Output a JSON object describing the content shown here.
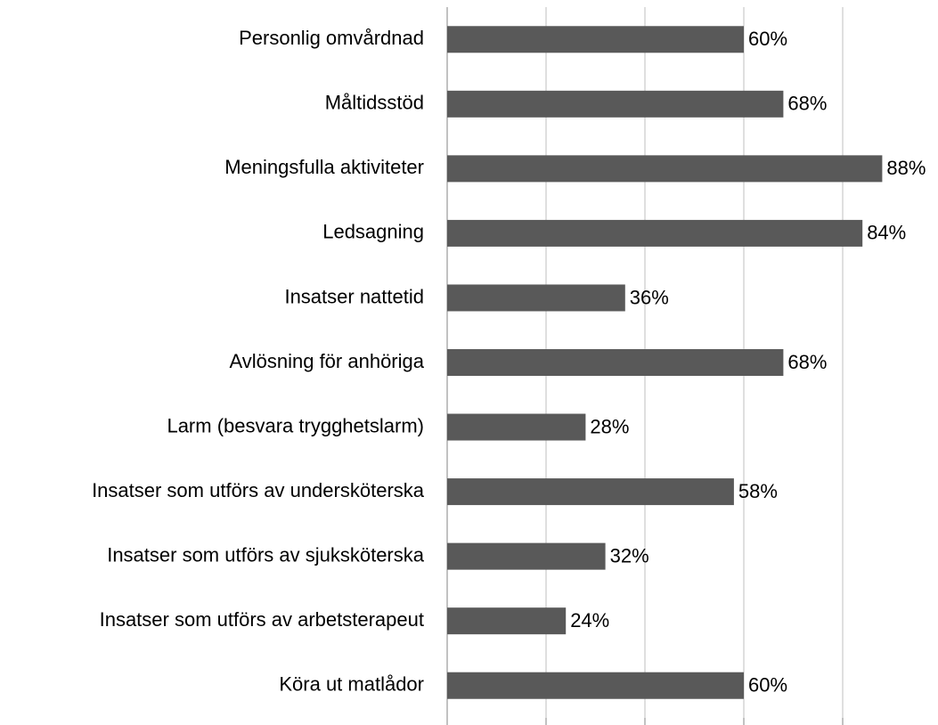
{
  "chart_data": {
    "type": "bar",
    "orientation": "horizontal",
    "categories": [
      "Personlig omvårdnad",
      "Måltidsstöd",
      "Meningsfulla aktiviteter",
      "Ledsagning",
      "Insatser nattetid",
      "Avlösning för anhöriga",
      "Larm (besvara trygghetslarm)",
      "Insatser som utförs av undersköterska",
      "Insatser som utförs av sjuksköterska",
      "Insatser som utförs av arbetsterapeut",
      "Köra ut matlådor"
    ],
    "values": [
      60,
      68,
      88,
      84,
      36,
      68,
      28,
      58,
      32,
      24,
      60
    ],
    "value_labels": [
      "60%",
      "68%",
      "88%",
      "84%",
      "36%",
      "68%",
      "28%",
      "58%",
      "32%",
      "24%",
      "60%"
    ],
    "color": "#595959",
    "xlim": [
      0,
      100
    ],
    "xticks": [
      0,
      20,
      40,
      60,
      80
    ],
    "grid": true
  }
}
